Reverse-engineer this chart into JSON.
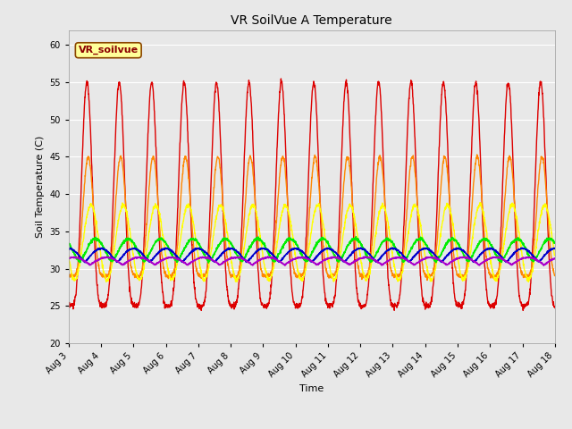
{
  "title": "VR SoilVue A Temperature",
  "xlabel": "Time",
  "ylabel": "Soil Temperature (C)",
  "ylim": [
    20,
    62
  ],
  "yticks": [
    20,
    25,
    30,
    35,
    40,
    45,
    50,
    55,
    60
  ],
  "fig_bg_color": "#e8e8e8",
  "plot_bg_color": "#e8e8e8",
  "grid_color": "#ffffff",
  "legend_label": "VR_soilvue",
  "series_colors": {
    "A-05_T": "#dd0000",
    "A-10_T": "#ff8800",
    "A-20_T": "#ffff00",
    "A-30_T": "#00ee00",
    "A-40_T": "#0000cc",
    "A-50_T": "#aa00cc"
  },
  "x_tick_days": [
    3,
    4,
    5,
    6,
    7,
    8,
    9,
    10,
    11,
    12,
    13,
    14,
    15,
    16,
    17,
    18
  ],
  "x_tick_labels": [
    "Aug 3",
    "Aug 4",
    "Aug 5",
    "Aug 6",
    "Aug 7",
    "Aug 8",
    "Aug 9",
    "Aug 10",
    "Aug 11",
    "Aug 12",
    "Aug 13",
    "Aug 14",
    "Aug 15",
    "Aug 16",
    "Aug 17",
    "Aug 18"
  ],
  "figwidth": 6.4,
  "figheight": 4.8,
  "dpi": 100
}
